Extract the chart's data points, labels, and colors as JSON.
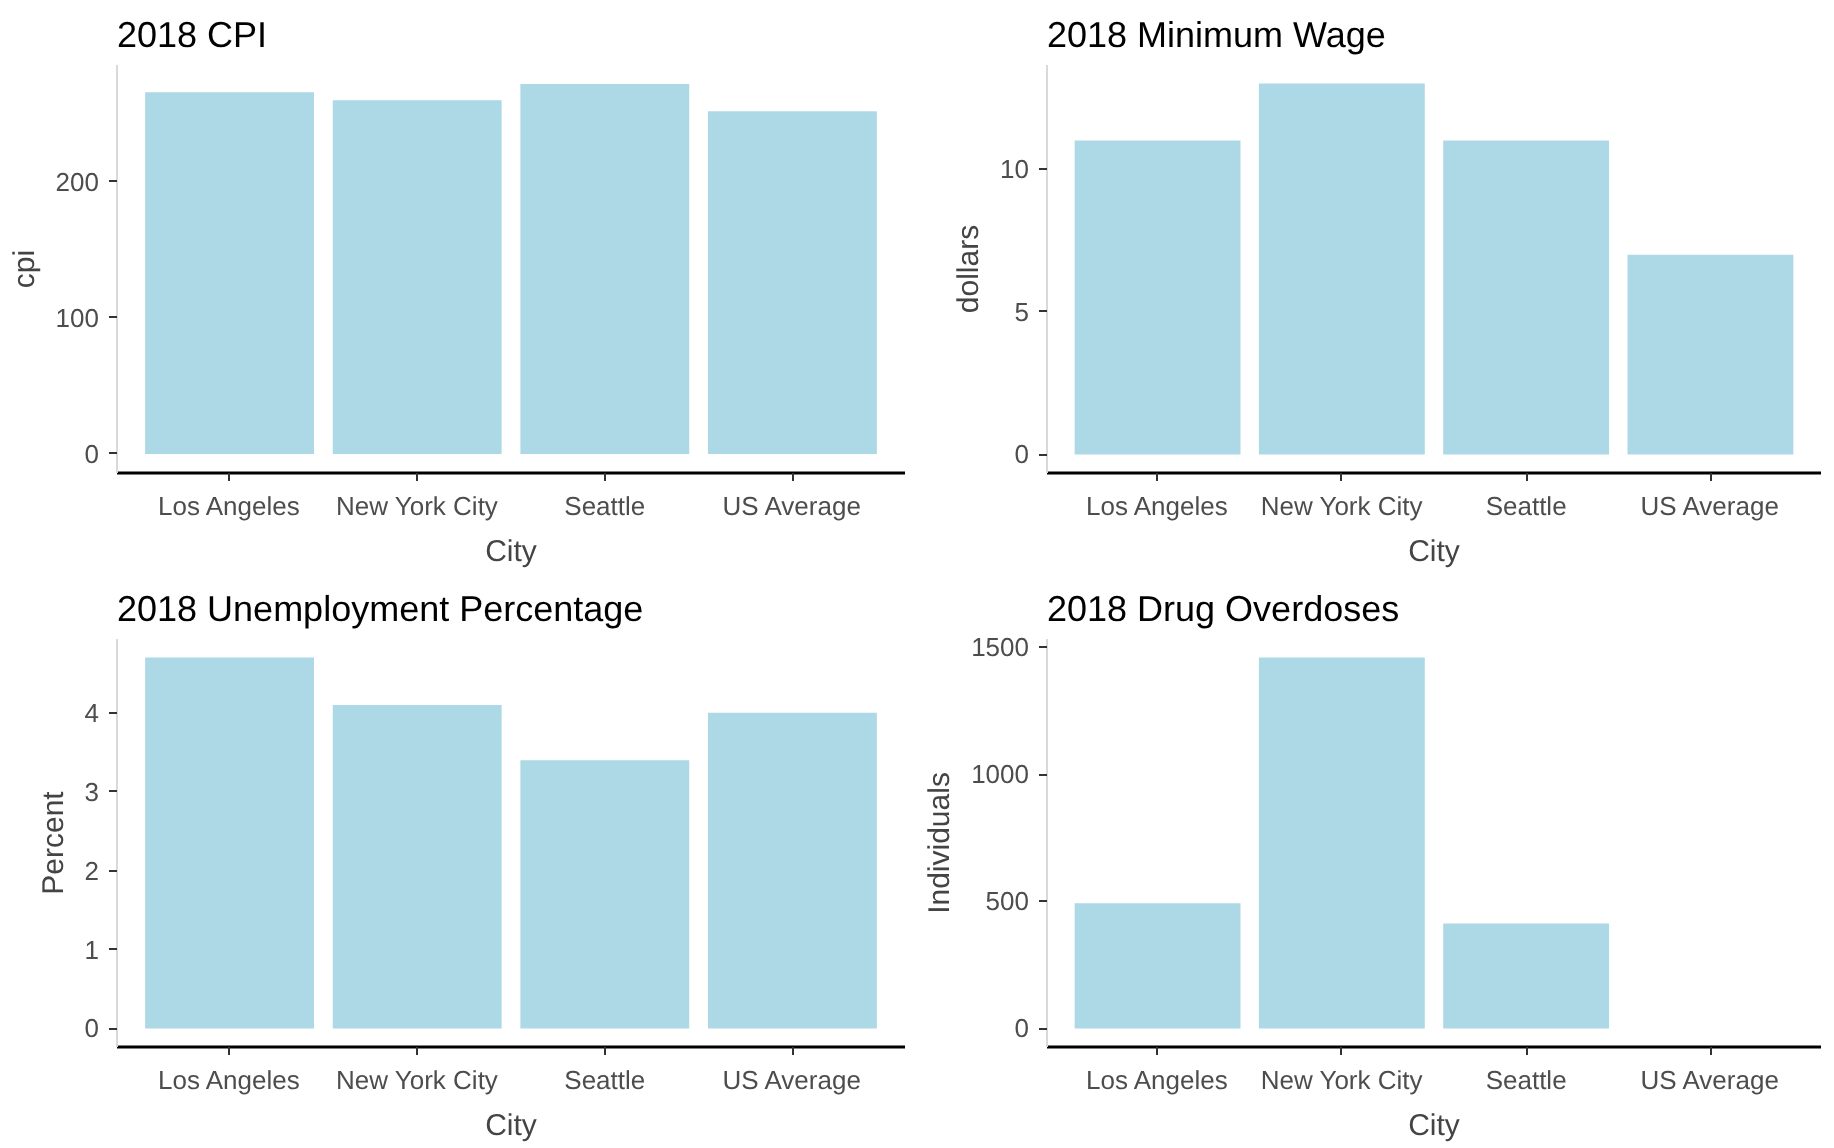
{
  "chart_data": [
    {
      "type": "bar",
      "title": "2018 CPI",
      "xlabel": "City",
      "ylabel": "cpi",
      "categories": [
        "Los Angeles",
        "New York City",
        "Seattle",
        "US Average"
      ],
      "values": [
        266,
        260,
        272,
        252
      ],
      "color": "#add8e6",
      "ylim": [
        -14,
        286
      ],
      "yticks": [
        0,
        100,
        200
      ]
    },
    {
      "type": "bar",
      "title": "2018 Minimum Wage",
      "xlabel": "City",
      "ylabel": "dollars",
      "categories": [
        "Los Angeles",
        "New York City",
        "Seattle",
        "US Average"
      ],
      "values": [
        11,
        13,
        11,
        7
      ],
      "color": "#add8e6",
      "ylim": [
        -0.65,
        13.65
      ],
      "yticks": [
        0,
        5,
        10
      ]
    },
    {
      "type": "bar",
      "title": "2018 Unemployment Percentage",
      "xlabel": "City",
      "ylabel": "Percent",
      "categories": [
        "Los Angeles",
        "New York City",
        "Seattle",
        "US Average"
      ],
      "values": [
        4.7,
        4.1,
        3.4,
        4.0
      ],
      "color": "#add8e6",
      "ylim": [
        -0.235,
        4.935
      ],
      "yticks": [
        0,
        1,
        2,
        3,
        4
      ]
    },
    {
      "type": "bar",
      "title": "2018 Drug Overdoses",
      "xlabel": "City",
      "ylabel": "Individuals",
      "categories": [
        "Los Angeles",
        "New York City",
        "Seattle",
        "US Average"
      ],
      "values": [
        492,
        1458,
        413,
        null
      ],
      "color": "#add8e6",
      "ylim": [
        -73,
        1531
      ],
      "yticks": [
        0,
        500,
        1000,
        1500
      ]
    }
  ]
}
